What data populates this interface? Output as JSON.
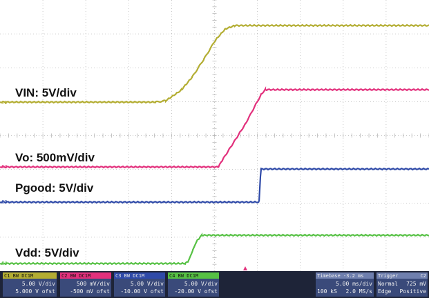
{
  "scope": {
    "colors": {
      "background": "#ffffff",
      "grid": "#b8b8b8",
      "ch1": "#b3ad32",
      "ch2": "#e2307c",
      "ch3": "#2f4aa8",
      "ch4": "#56c144",
      "panel_bg": "#3a4a7a",
      "trigger": "#e2307c"
    },
    "grid": {
      "divisions_x": 10,
      "divisions_y": 8
    },
    "channels": [
      {
        "id": "C1",
        "tag": "C1",
        "label": "VIN: 5V/div",
        "color": "#b3ad32",
        "trace": [
          [
            0,
            148
          ],
          [
            225,
            148
          ],
          [
            240,
            146
          ],
          [
            262,
            131
          ],
          [
            278,
            112
          ],
          [
            295,
            86
          ],
          [
            312,
            58
          ],
          [
            326,
            42
          ],
          [
            340,
            37
          ],
          [
            621,
            37
          ]
        ]
      },
      {
        "id": "C2",
        "tag": "C2",
        "label": "Vo: 500mV/div",
        "color": "#e2307c",
        "trace": [
          [
            0,
            242
          ],
          [
            316,
            242
          ],
          [
            322,
            232
          ],
          [
            355,
            180
          ],
          [
            378,
            137
          ],
          [
            384,
            130
          ],
          [
            621,
            130
          ]
        ]
      },
      {
        "id": "C3",
        "tag": "C3",
        "label": "Pgood: 5V/div",
        "color": "#2f4aa8",
        "trace": [
          [
            0,
            293
          ],
          [
            375,
            293
          ],
          [
            377,
            255
          ],
          [
            378,
            245
          ],
          [
            621,
            245
          ]
        ]
      },
      {
        "id": "C4",
        "tag": "C4",
        "label": "Vdd: 5V/div",
        "color": "#56c144",
        "trace": [
          [
            0,
            382
          ],
          [
            268,
            382
          ],
          [
            272,
            379
          ],
          [
            279,
            363
          ],
          [
            286,
            348
          ],
          [
            292,
            341
          ],
          [
            621,
            341
          ]
        ]
      }
    ],
    "panels": [
      {
        "header": "C1  BW  DC1M",
        "line1": "5.00 V/div",
        "line2": "5.000 V ofst"
      },
      {
        "header": "C2  BW  DC1M",
        "line1": "500 mV/div",
        "line2": "-500 mV ofst"
      },
      {
        "header": "C3  BW  DC1M",
        "line1": "5.00 V/div",
        "line2": "-10.00 V ofst"
      },
      {
        "header": "C4  BW  DC1M",
        "line1": "5.00 V/div",
        "line2": "-20.00 V ofst"
      }
    ],
    "timebase": {
      "header": "Timebase   -3.2 ms",
      "line1": "5.00 ms/div",
      "line2a": "100 kS",
      "line2b": "2.0 MS/s"
    },
    "trigger": {
      "header": "Trigger",
      "slot": "C2",
      "line1a": "Normal",
      "line1b": "725 mV",
      "line2a": "Edge",
      "line2b": "Positive"
    }
  }
}
